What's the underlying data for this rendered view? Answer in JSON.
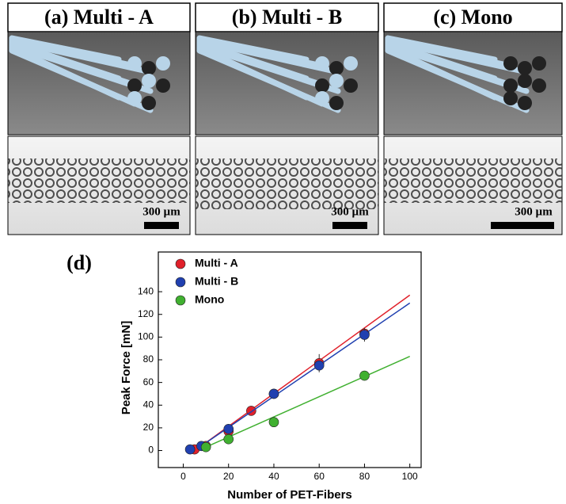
{
  "panels": [
    {
      "title": "(a) Multi - A",
      "scale_bar": "300 µm"
    },
    {
      "title": "(b) Multi - B",
      "scale_bar": "300 µm"
    },
    {
      "title": "(c) Mono",
      "scale_bar": "300 µm"
    }
  ],
  "chart_data": {
    "type": "scatter",
    "panel_label": "(d)",
    "x_label": "Number of PET-Fibers",
    "y_label": "Peak Force [mN]",
    "xlim": [
      -11,
      105
    ],
    "ylim": [
      -15,
      175
    ],
    "xticks": [
      0,
      20,
      40,
      60,
      80,
      100
    ],
    "yticks": [
      0,
      20,
      40,
      60,
      80,
      100,
      120,
      140
    ],
    "legend": "top-left",
    "series": [
      {
        "name": "Multi - A",
        "color": "#e0202a",
        "x": [
          5,
          10,
          20,
          30,
          40,
          60,
          80
        ],
        "values": [
          1,
          4,
          17,
          35,
          50,
          77,
          103
        ],
        "errors": [
          null,
          null,
          null,
          null,
          null,
          8,
          null
        ],
        "fit_x": [
          8,
          100
        ],
        "fit_values": [
          4,
          137
        ]
      },
      {
        "name": "Multi - B",
        "color": "#2040b0",
        "x": [
          3,
          8,
          20,
          40,
          60,
          80
        ],
        "values": [
          1,
          4,
          19,
          50,
          75,
          102
        ],
        "errors": [
          null,
          null,
          null,
          null,
          null,
          6
        ],
        "fit_x": [
          8,
          100
        ],
        "fit_values": [
          4,
          130
        ]
      },
      {
        "name": "Mono",
        "color": "#40b030",
        "x": [
          10,
          20,
          40,
          80
        ],
        "values": [
          3,
          10,
          25,
          66
        ],
        "errors": [
          null,
          null,
          null,
          null
        ],
        "fit_x": [
          10,
          100
        ],
        "fit_values": [
          3,
          83
        ]
      }
    ]
  }
}
